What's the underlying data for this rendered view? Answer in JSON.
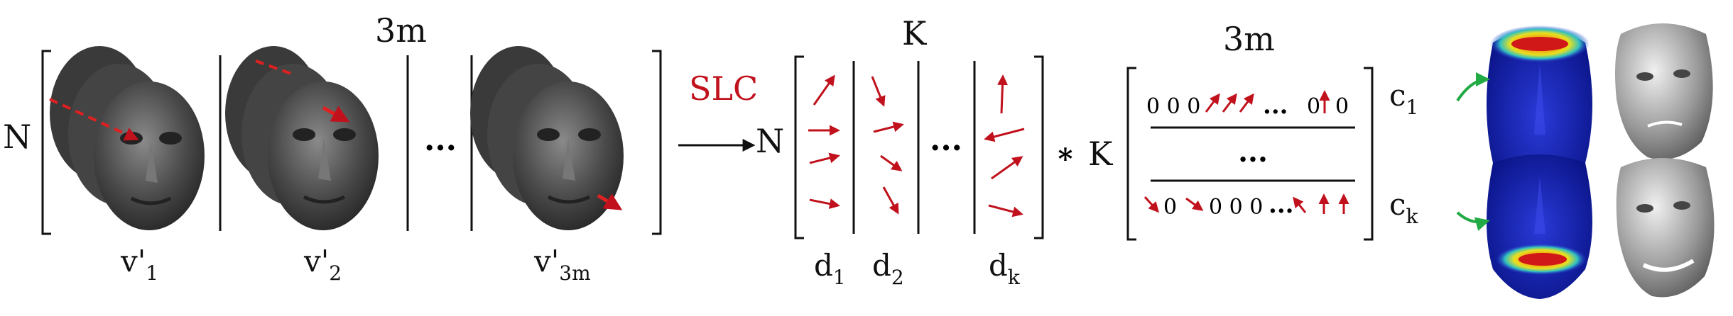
{
  "colors": {
    "arrow": "#c0111c",
    "green_arrow": "#22aa44",
    "text": "#111111",
    "face": "#4a4a4a",
    "face_light": "#9a9a9a"
  },
  "left_block": {
    "row_label": "N",
    "col_label": "3m",
    "ellipsis": "...",
    "columns": [
      {
        "label_main": "v'",
        "label_sub": "1"
      },
      {
        "label_main": "v'",
        "label_sub": "2"
      },
      {
        "label_main": "v'",
        "label_sub": "3m"
      }
    ]
  },
  "operator": {
    "label": "SLC",
    "result_row_label": "N"
  },
  "middle_block": {
    "col_label": "K",
    "ellipsis": "...",
    "columns": [
      {
        "label_main": "d",
        "label_sub": "1"
      },
      {
        "label_main": "d",
        "label_sub": "2"
      },
      {
        "label_main": "d",
        "label_sub": "k"
      }
    ]
  },
  "multiply": {
    "symbol": "*",
    "row_label": "K"
  },
  "right_block": {
    "col_label": "3m",
    "row1_text": "0 0 0",
    "row1_tail": "0",
    "row_ellipsis": "...",
    "middle_ellipsis": "...",
    "row2_zero": "0",
    "row2_text": "0 0 0",
    "row_labels": [
      {
        "label_main": "c",
        "label_sub": "1"
      },
      {
        "label_main": "c",
        "label_sub": "k"
      }
    ]
  },
  "heatmaps": [
    {
      "region": "forehead"
    },
    {
      "region": "mouth"
    }
  ]
}
